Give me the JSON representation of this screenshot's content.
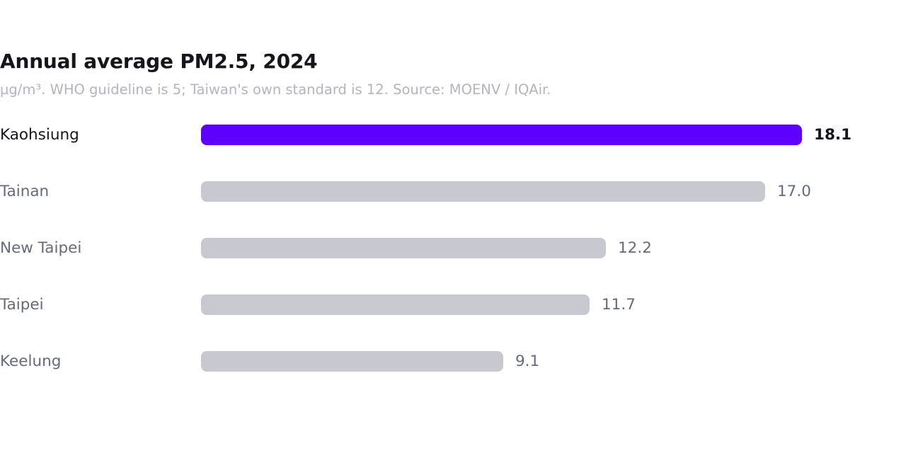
{
  "chart_data": {
    "type": "bar",
    "orientation": "horizontal",
    "title": "Annual average PM2.5, 2024",
    "subtitle": "µg/m³. WHO guideline is 5; Taiwan's own standard is 12. Source: MOENV / IQAir.",
    "categories": [
      "Kaohsiung",
      "Tainan",
      "New Taipei",
      "Taipei",
      "Keelung"
    ],
    "values": [
      18.1,
      17.0,
      12.2,
      11.7,
      9.1
    ],
    "value_labels": [
      "18.1",
      "17.0",
      "12.2",
      "11.7",
      "9.1"
    ],
    "highlight_index": 0,
    "xlim": [
      0,
      18.1
    ],
    "grid": false,
    "legend": "none"
  },
  "colors": {
    "highlight": "#5e00ff",
    "bar": "#c8c9d0",
    "label": "#666a7e",
    "highlight_label": "#15151d",
    "subtitle": "#b4b4bf"
  }
}
